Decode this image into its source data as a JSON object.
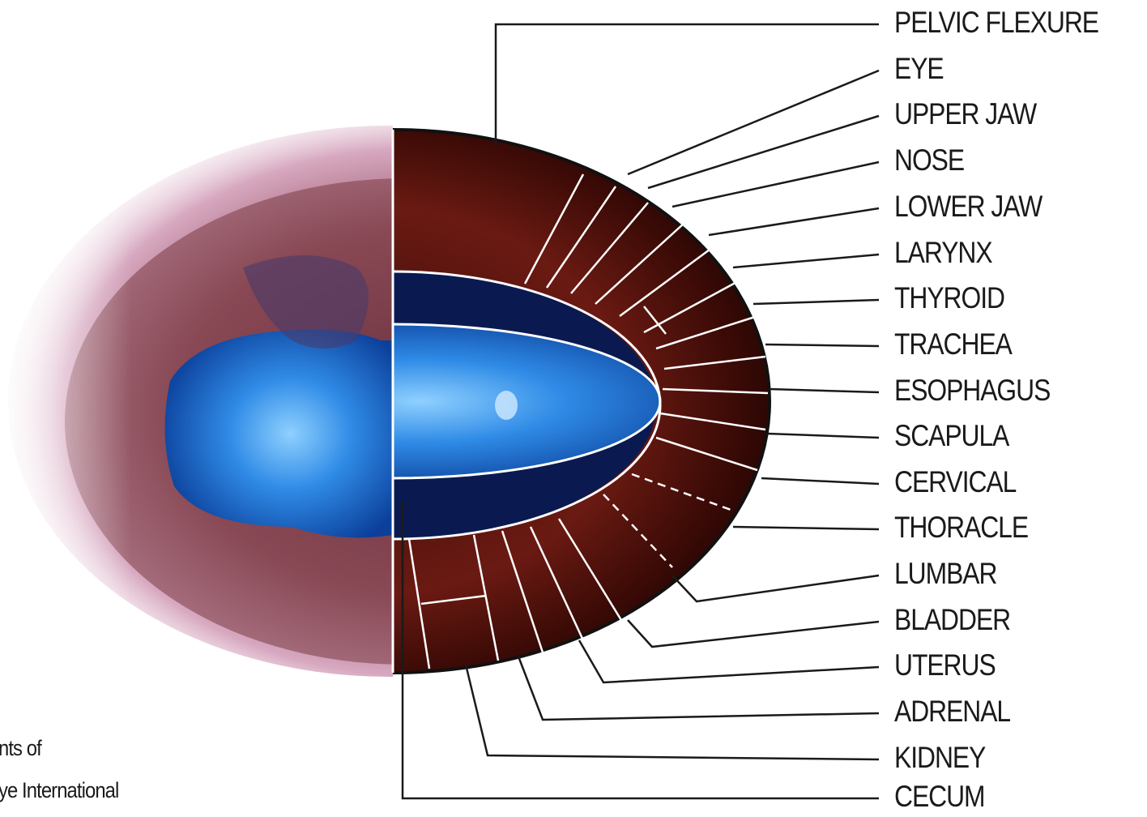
{
  "labels": [
    "PELVIC FLEXURE",
    "EYE",
    "UPPER JAW",
    "NOSE",
    "LOWER JAW",
    "LARYNX",
    "THYROID",
    "TRACHEA",
    "ESOPHAGUS",
    "SCAPULA",
    "CERVICAL",
    "THORACLE",
    "LUMBAR",
    "BLADDER",
    "UTERUS",
    "ADRENAL",
    "KIDNEY",
    "CECUM"
  ],
  "credit": {
    "line1": "nts of",
    "line2": "ye International"
  }
}
